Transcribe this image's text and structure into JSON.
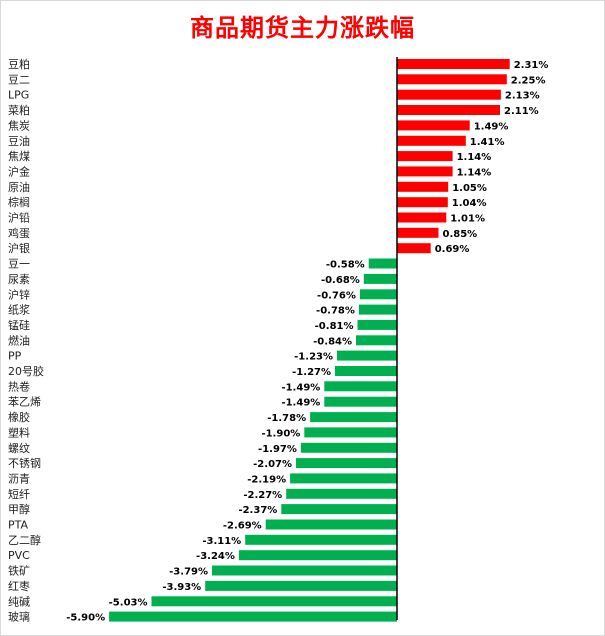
{
  "chart_data": {
    "type": "bar",
    "orientation": "horizontal",
    "title": "商品期货主力涨跌幅",
    "xlabel": "",
    "ylabel": "",
    "grid": false,
    "legend": "none",
    "value_format": "percent_2dp",
    "colors": {
      "positive": "#ff0000",
      "negative": "#00b050",
      "axis": "#000000",
      "title": "#ff0000"
    },
    "categories": [
      "豆粕",
      "豆二",
      "LPG",
      "菜粕",
      "焦炭",
      "豆油",
      "焦煤",
      "沪金",
      "原油",
      "棕榈",
      "沪铅",
      "鸡蛋",
      "沪银",
      "豆一",
      "尿素",
      "沪锌",
      "纸浆",
      "锰硅",
      "燃油",
      "PP",
      "20号胶",
      "热卷",
      "苯乙烯",
      "橡胶",
      "塑料",
      "螺纹",
      "不锈钢",
      "沥青",
      "短纤",
      "甲醇",
      "PTA",
      "乙二醇",
      "PVC",
      "铁矿",
      "红枣",
      "纯碱",
      "玻璃"
    ],
    "values": [
      2.31,
      2.25,
      2.13,
      2.11,
      1.49,
      1.41,
      1.14,
      1.14,
      1.05,
      1.04,
      1.01,
      0.85,
      0.69,
      -0.58,
      -0.68,
      -0.76,
      -0.78,
      -0.81,
      -0.84,
      -1.23,
      -1.27,
      -1.49,
      -1.49,
      -1.78,
      -1.9,
      -1.97,
      -2.07,
      -2.19,
      -2.27,
      -2.37,
      -2.69,
      -3.11,
      -3.24,
      -3.79,
      -3.93,
      -5.03,
      -5.9
    ],
    "xlim": [
      -6.0,
      2.5
    ]
  }
}
